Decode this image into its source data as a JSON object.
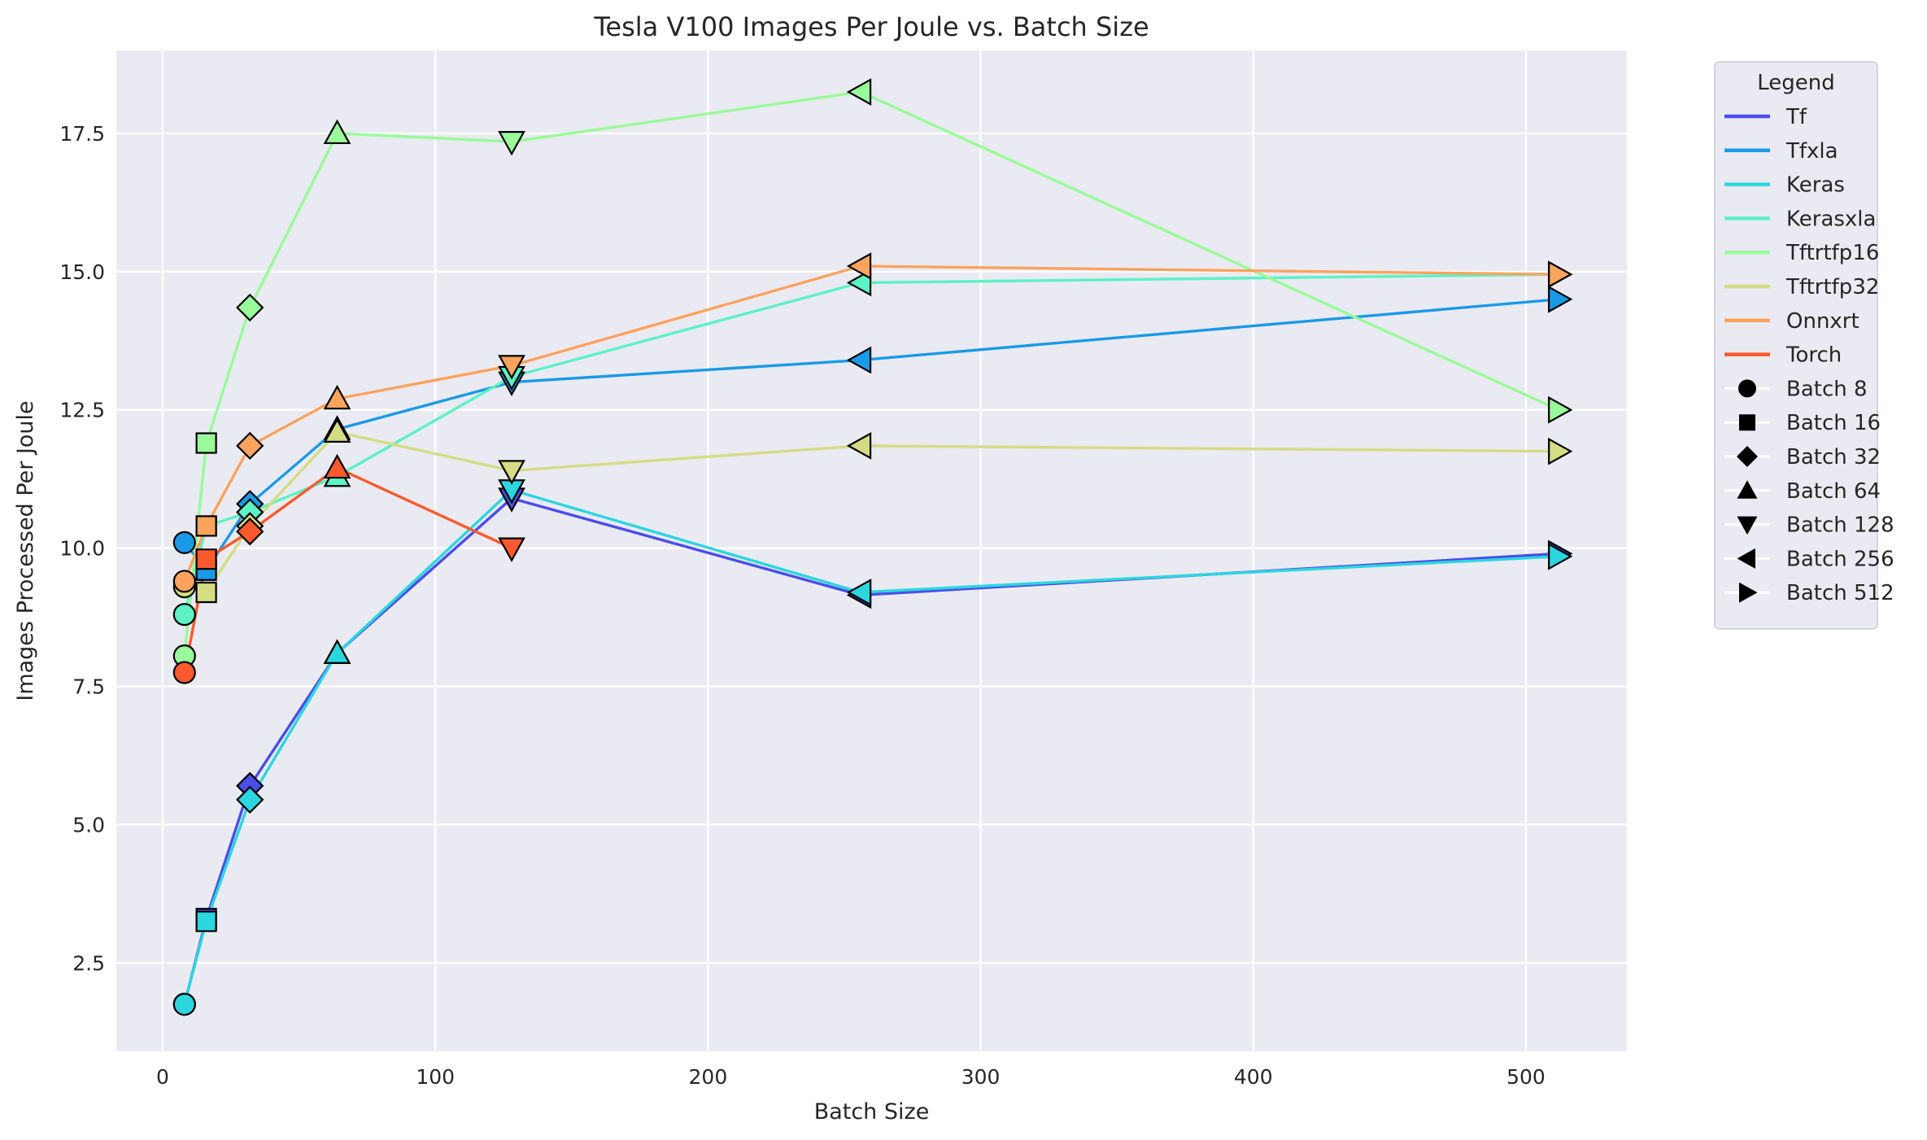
{
  "chart_data": {
    "type": "line",
    "title": "Tesla V100 Images Per Joule vs. Batch Size",
    "xlabel": "Batch Size",
    "ylabel": "Images Processed Per Joule",
    "xlim": [
      -17,
      537
    ],
    "ylim": [
      0.9,
      19.0
    ],
    "xticks": [
      0,
      100,
      200,
      300,
      400,
      500
    ],
    "yticks": [
      2.5,
      5.0,
      7.5,
      10.0,
      12.5,
      15.0,
      17.5
    ],
    "xtick_labels": [
      "0",
      "100",
      "200",
      "300",
      "400",
      "500"
    ],
    "ytick_labels": [
      "2.5",
      "5.0",
      "7.5",
      "10.0",
      "12.5",
      "15.0",
      "17.5"
    ],
    "grid": true,
    "background": "#eaeaf2",
    "legend_title": "Legend",
    "legend_placement": "outside right, top",
    "x": [
      8,
      16,
      32,
      64,
      128,
      256,
      512
    ],
    "series": [
      {
        "name": "Tf",
        "color": "#4a4ee8",
        "values": [
          1.75,
          3.3,
          5.7,
          8.1,
          10.9,
          9.15,
          9.9
        ]
      },
      {
        "name": "Tfxla",
        "color": "#1a9ae6",
        "values": [
          10.1,
          9.6,
          10.8,
          12.15,
          13.0,
          13.4,
          14.5
        ]
      },
      {
        "name": "Keras",
        "color": "#2cd6df",
        "values": [
          1.75,
          3.25,
          5.45,
          8.1,
          11.05,
          9.2,
          9.85
        ]
      },
      {
        "name": "Kerasxla",
        "color": "#5cf2c4",
        "values": [
          8.8,
          10.4,
          10.65,
          11.3,
          13.1,
          14.8,
          14.95
        ]
      },
      {
        "name": "Tftrtfp16",
        "color": "#9afb9a",
        "values": [
          8.05,
          11.9,
          14.35,
          17.5,
          17.35,
          18.25,
          12.5
        ]
      },
      {
        "name": "Tftrtfp32",
        "color": "#d4dc84",
        "values": [
          9.3,
          9.2,
          10.4,
          12.1,
          11.4,
          11.85,
          11.75
        ]
      },
      {
        "name": "Onnxrt",
        "color": "#fca35e",
        "values": [
          9.4,
          10.4,
          11.85,
          12.7,
          13.3,
          15.1,
          14.95
        ]
      },
      {
        "name": "Torch",
        "color": "#fc5a2e",
        "values": [
          7.75,
          9.8,
          10.3,
          11.45,
          10.0,
          null,
          null
        ]
      }
    ],
    "batch_markers": [
      {
        "label": "Batch 8",
        "marker": "circle"
      },
      {
        "label": "Batch 16",
        "marker": "square"
      },
      {
        "label": "Batch 32",
        "marker": "diamond"
      },
      {
        "label": "Batch 64",
        "marker": "triangle-up"
      },
      {
        "label": "Batch 128",
        "marker": "triangle-down"
      },
      {
        "label": "Batch 256",
        "marker": "triangle-left"
      },
      {
        "label": "Batch 512",
        "marker": "triangle-right"
      }
    ]
  }
}
